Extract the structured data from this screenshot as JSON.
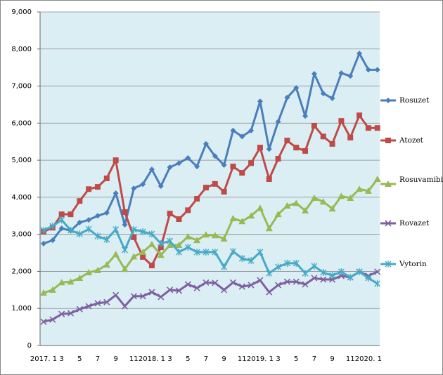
{
  "chart_data": {
    "type": "line",
    "categories": [
      "2017. 1",
      null,
      "3",
      null,
      "5",
      null,
      "7",
      null,
      "9",
      null,
      "11",
      null,
      "2018. 1",
      null,
      "3",
      null,
      "5",
      null,
      "7",
      null,
      "9",
      null,
      "11",
      null,
      "2019. 1",
      null,
      "3",
      null,
      "5",
      null,
      "7",
      null,
      "9",
      null,
      "11",
      null,
      "2020. 1",
      null
    ],
    "ylim": [
      0,
      9000
    ],
    "yticks": [
      0,
      {
        "value": 1000,
        "label": "1,000"
      },
      {
        "value": 2000,
        "label": "2,000"
      },
      {
        "value": 3000,
        "label": "3,000"
      },
      {
        "value": 4000,
        "label": "4,000"
      },
      {
        "value": 5000,
        "label": "5,000"
      },
      {
        "value": 6000,
        "label": "6,000"
      },
      {
        "value": 7000,
        "label": "7,000"
      },
      {
        "value": 8000,
        "label": "8,000"
      },
      {
        "value": 9000,
        "label": "9,000"
      }
    ],
    "grid": true,
    "legend": "right",
    "series": [
      {
        "name": "Rosuzet",
        "color": "#4a7ebb",
        "marker": "diamond",
        "values": [
          2750,
          2840,
          3160,
          3100,
          3320,
          3390,
          3500,
          3580,
          4110,
          3260,
          4240,
          4350,
          4750,
          4300,
          4810,
          4920,
          5060,
          4830,
          5440,
          5110,
          4870,
          5800,
          5640,
          5800,
          6590,
          5300,
          6040,
          6690,
          6950,
          6190,
          7330,
          6800,
          6670,
          7350,
          7270,
          7880,
          7440,
          7440
        ]
      },
      {
        "name": "Atozet",
        "color": "#be4b48",
        "marker": "square",
        "values": [
          3070,
          3180,
          3540,
          3540,
          3900,
          4220,
          4280,
          4510,
          5000,
          3600,
          2920,
          2390,
          2160,
          2650,
          3560,
          3410,
          3650,
          3960,
          4260,
          4360,
          4150,
          4830,
          4660,
          4920,
          5340,
          4490,
          5040,
          5530,
          5340,
          5250,
          5930,
          5640,
          5440,
          6060,
          5610,
          6210,
          5870,
          5870
        ]
      },
      {
        "name": "Rosuvamibie",
        "color": "#98b954",
        "marker": "triangle",
        "values": [
          1420,
          1500,
          1700,
          1720,
          1820,
          1970,
          2030,
          2180,
          2460,
          2060,
          2400,
          2520,
          2730,
          2440,
          2710,
          2710,
          2940,
          2840,
          2990,
          2970,
          2880,
          3430,
          3350,
          3500,
          3710,
          3160,
          3540,
          3770,
          3840,
          3640,
          3980,
          3880,
          3690,
          4030,
          3980,
          4220,
          4170,
          4490
        ]
      },
      {
        "name": "Rovazet",
        "color": "#7d60a0",
        "marker": "x",
        "values": [
          640,
          700,
          850,
          870,
          980,
          1060,
          1140,
          1170,
          1360,
          1060,
          1330,
          1330,
          1440,
          1310,
          1500,
          1480,
          1650,
          1550,
          1700,
          1690,
          1500,
          1700,
          1590,
          1630,
          1760,
          1440,
          1630,
          1720,
          1720,
          1650,
          1820,
          1780,
          1780,
          1880,
          1840,
          1990,
          1880,
          1990
        ]
      },
      {
        "name": "Vytorin",
        "color": "#46aac5",
        "marker": "asterisk",
        "values": [
          3110,
          3220,
          3390,
          3110,
          3010,
          3140,
          2950,
          2860,
          3130,
          2580,
          3130,
          3070,
          3010,
          2750,
          2820,
          2520,
          2650,
          2520,
          2520,
          2520,
          2120,
          2540,
          2350,
          2290,
          2520,
          1950,
          2120,
          2220,
          2220,
          1950,
          2140,
          1970,
          1890,
          1990,
          1840,
          1990,
          1820,
          1670
        ]
      }
    ]
  }
}
